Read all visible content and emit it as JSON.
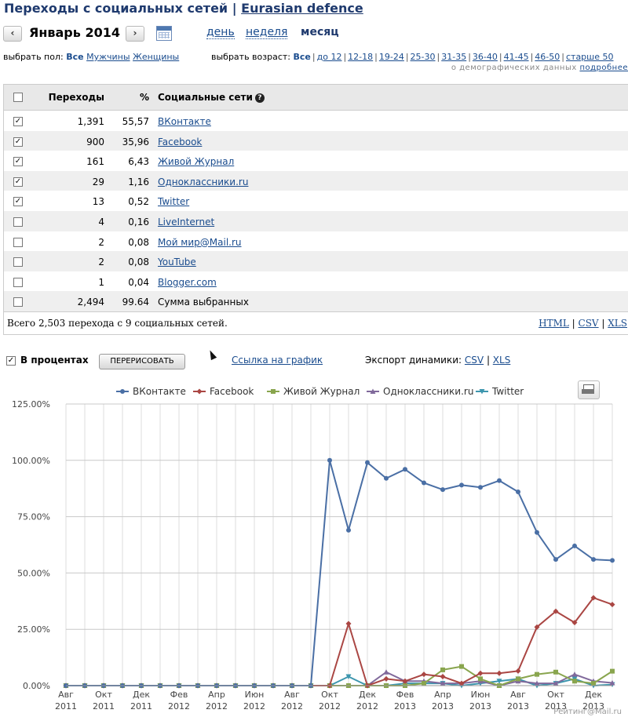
{
  "header": {
    "title_prefix": "Переходы с социальных сетей",
    "title_sep": "|",
    "site_link": "Eurasian defence"
  },
  "period": {
    "prev_label": "‹",
    "next_label": "›",
    "current": "Январь 2014",
    "calendar_icon": "calendar-icon",
    "tabs": [
      {
        "label": "день",
        "active": false
      },
      {
        "label": "неделя",
        "active": false
      },
      {
        "label": "месяц",
        "active": true
      }
    ]
  },
  "filters": {
    "gender_label": "выбрать пол:",
    "gender_options": [
      "Все",
      "Мужчины",
      "Женщины"
    ],
    "gender_selected": "Все",
    "age_label": "выбрать возраст:",
    "age_options": [
      "Все",
      "до 12",
      "12-18",
      "19-24",
      "25-30",
      "31-35",
      "36-40",
      "41-45",
      "46-50",
      "старше 50"
    ],
    "age_selected": "Все",
    "demo_note": "о демографических данных",
    "demo_link": "подробнее"
  },
  "table": {
    "headers": {
      "transitions": "Переходы",
      "percent": "%",
      "networks": "Социальные сети",
      "help": "?"
    },
    "rows": [
      {
        "checked": true,
        "count": "1,391",
        "pct": "55,57",
        "name": "ВКонтакте"
      },
      {
        "checked": true,
        "count": "900",
        "pct": "35,96",
        "name": "Facebook"
      },
      {
        "checked": true,
        "count": "161",
        "pct": "6,43",
        "name": "Живой Журнал"
      },
      {
        "checked": true,
        "count": "29",
        "pct": "1,16",
        "name": "Одноклассники.ru"
      },
      {
        "checked": true,
        "count": "13",
        "pct": "0,52",
        "name": "Twitter"
      },
      {
        "checked": false,
        "count": "4",
        "pct": "0,16",
        "name": "LiveInternet"
      },
      {
        "checked": false,
        "count": "2",
        "pct": "0,08",
        "name": "Мой мир@Mail.ru"
      },
      {
        "checked": false,
        "count": "2",
        "pct": "0,08",
        "name": "YouTube"
      },
      {
        "checked": false,
        "count": "1",
        "pct": "0,04",
        "name": "Blogger.com"
      }
    ],
    "summary": {
      "checked": false,
      "count": "2,494",
      "pct": "99.64",
      "name": "Сумма выбранных"
    },
    "total_text": "Всего 2,503 перехода с 9 социальных сетей.",
    "exports": [
      "HTML",
      "CSV",
      "XLS"
    ]
  },
  "controls": {
    "percent_checked": true,
    "percent_label": "В процентах",
    "redraw_label": "ПЕРЕРИСОВАТЬ",
    "graph_link": "Ссылка на график",
    "export_label": "Экспорт динамики:",
    "export_links": [
      "CSV",
      "XLS"
    ],
    "print_icon": "printer-icon"
  },
  "chart_data": {
    "type": "line",
    "ylim": [
      0,
      125
    ],
    "yticks": [
      "0.00%",
      "25.00%",
      "50.00%",
      "75.00%",
      "100.00%",
      "125.00%"
    ],
    "x_ticks": [
      {
        "m": "Авг",
        "y": "2011"
      },
      {
        "m": "Окт",
        "y": "2011"
      },
      {
        "m": "Дек",
        "y": "2011"
      },
      {
        "m": "Фев",
        "y": "2012"
      },
      {
        "m": "Апр",
        "y": "2012"
      },
      {
        "m": "Июн",
        "y": "2012"
      },
      {
        "m": "Авг",
        "y": "2012"
      },
      {
        "m": "Окт",
        "y": "2012"
      },
      {
        "m": "Дек",
        "y": "2012"
      },
      {
        "m": "Фев",
        "y": "2013"
      },
      {
        "m": "Апр",
        "y": "2013"
      },
      {
        "m": "Июн",
        "y": "2013"
      },
      {
        "m": "Авг",
        "y": "2013"
      },
      {
        "m": "Окт",
        "y": "2013"
      },
      {
        "m": "Дек",
        "y": "2013"
      }
    ],
    "x": [
      "2011-08",
      "2011-09",
      "2011-10",
      "2011-11",
      "2011-12",
      "2012-01",
      "2012-02",
      "2012-03",
      "2012-04",
      "2012-05",
      "2012-06",
      "2012-07",
      "2012-08",
      "2012-09",
      "2012-10",
      "2012-11",
      "2012-12",
      "2013-01",
      "2013-02",
      "2013-03",
      "2013-04",
      "2013-05",
      "2013-06",
      "2013-07",
      "2013-08",
      "2013-09",
      "2013-10",
      "2013-11",
      "2013-12",
      "2014-01"
    ],
    "series": [
      {
        "name": "ВКонтакте",
        "color": "#4a6fa5",
        "marker": "circle",
        "values": [
          0,
          0,
          0,
          0,
          0,
          0,
          0,
          0,
          0,
          0,
          0,
          0,
          0,
          0,
          100,
          69,
          99,
          92,
          96,
          90,
          87,
          89,
          88,
          91,
          86,
          68,
          56,
          62,
          56,
          55.6
        ]
      },
      {
        "name": "Facebook",
        "color": "#aa4643",
        "marker": "diamond",
        "values": [
          0,
          0,
          0,
          0,
          0,
          0,
          0,
          0,
          0,
          0,
          0,
          0,
          0,
          0,
          0,
          27.5,
          0,
          3,
          2,
          5,
          4,
          1,
          5.5,
          5.5,
          6.5,
          26,
          33,
          28,
          39,
          36
        ]
      },
      {
        "name": "Живой Журнал",
        "color": "#89a54e",
        "marker": "square",
        "values": [
          0,
          0,
          0,
          0,
          0,
          0,
          0,
          0,
          0,
          0,
          0,
          0,
          0,
          0,
          0,
          0,
          0,
          0,
          0,
          1,
          7,
          8.5,
          3,
          0,
          3,
          5,
          6,
          2,
          1,
          6.4
        ]
      },
      {
        "name": "Одноклассники.ru",
        "color": "#80699b",
        "marker": "triangle",
        "values": [
          0,
          0,
          0,
          0,
          0,
          0,
          0,
          0,
          0,
          0,
          0,
          0,
          0,
          0,
          0,
          0,
          0,
          6,
          2,
          2,
          1,
          1,
          2,
          0,
          2,
          1,
          1,
          5,
          2,
          1.2
        ]
      },
      {
        "name": "Twitter",
        "color": "#3d96ae",
        "marker": "triangle-down",
        "values": [
          0,
          0,
          0,
          0,
          0,
          0,
          0,
          0,
          0,
          0,
          0,
          0,
          0,
          0,
          0,
          4,
          0,
          0,
          1,
          1,
          1,
          0,
          1,
          2,
          3,
          0,
          1,
          3,
          0,
          0.5
        ]
      }
    ],
    "legend_position": "top-center",
    "grid": true
  },
  "brand": "Рейтинг@Mail.ru"
}
